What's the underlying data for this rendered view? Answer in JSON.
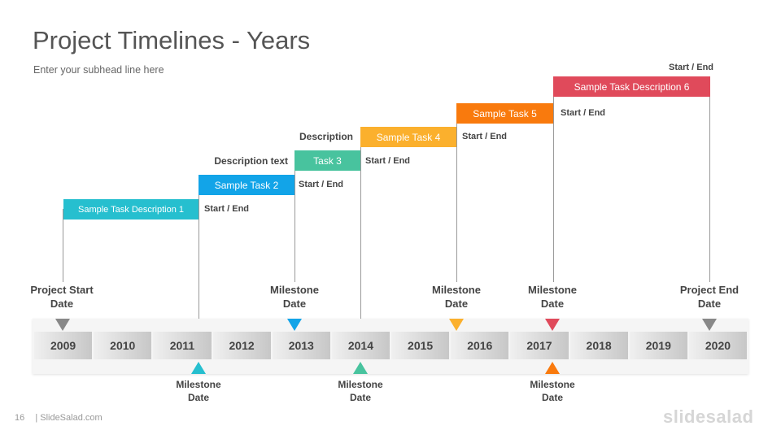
{
  "header": {
    "title": "Project Timelines - Years",
    "subtitle": "Enter your subhead  line here"
  },
  "tasks": [
    {
      "label": "Sample Task Description 1",
      "color": "#26bfcf",
      "start_end": "Start / End"
    },
    {
      "label": "Sample Task 2",
      "color": "#12a4e8",
      "start_end": "Start / End",
      "description": "Description text"
    },
    {
      "label": "Task 3",
      "color": "#48c39e",
      "start_end": "Start / End"
    },
    {
      "label": "Sample Task 4",
      "color": "#fbb02d",
      "start_end": "Start / End",
      "description": "Description"
    },
    {
      "label": "Sample Task 5",
      "color": "#f97a0d",
      "start_end": "Start / End"
    },
    {
      "label": "Sample Task Description 6",
      "color": "#e04a5b",
      "start_end": "Start / End"
    }
  ],
  "timeline": {
    "years": [
      "2009",
      "2010",
      "2011",
      "2012",
      "2013",
      "2014",
      "2015",
      "2016",
      "2017",
      "2018",
      "2019",
      "2020"
    ]
  },
  "milestones_top": [
    {
      "line1": "Project Start",
      "line2": "Date",
      "color": "#888888"
    },
    {
      "line1": "Milestone",
      "line2": "Date",
      "color": "#12a4e8"
    },
    {
      "line1": "Milestone",
      "line2": "Date",
      "color": "#fbb02d"
    },
    {
      "line1": "Milestone",
      "line2": "Date",
      "color": "#e04a5b"
    },
    {
      "line1": "Project End",
      "line2": "Date",
      "color": "#888888"
    }
  ],
  "milestones_bottom": [
    {
      "line1": "Milestone",
      "line2": "Date",
      "color": "#26bfcf"
    },
    {
      "line1": "Milestone",
      "line2": "Date",
      "color": "#48c39e"
    },
    {
      "line1": "Milestone",
      "line2": "Date",
      "color": "#f97a0d"
    }
  ],
  "footer": {
    "page_number": "16",
    "source": "| SlideSalad.com",
    "brand": "slidesalad"
  }
}
